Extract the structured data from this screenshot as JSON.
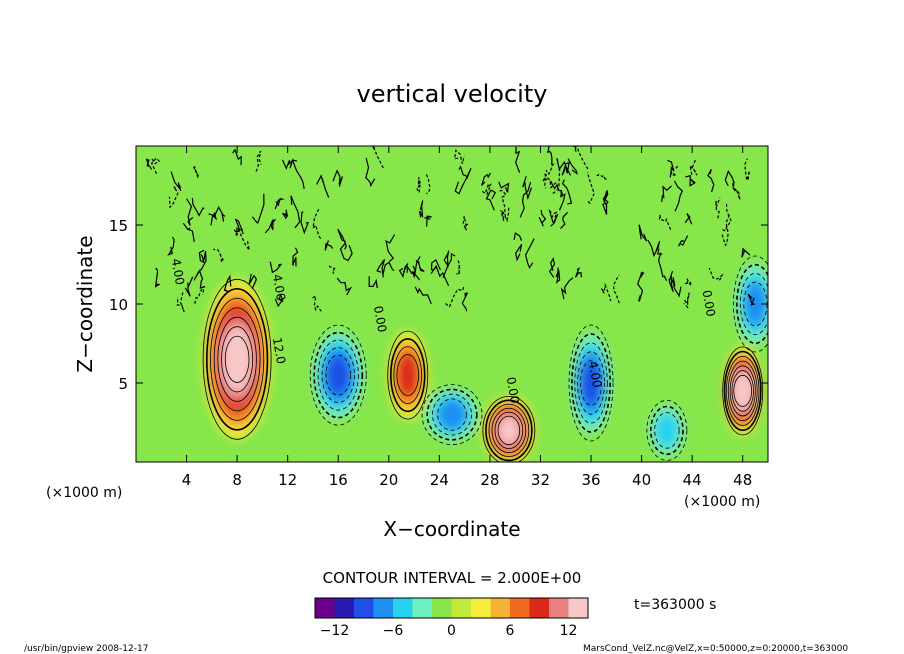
{
  "chart_data": {
    "type": "heatmap",
    "title": "vertical velocity",
    "xlabel": "X−coordinate",
    "ylabel": "Z−coordinate",
    "x_unit_left": "(×1000 m)",
    "x_unit_right": "(×1000 m)",
    "xlim": [
      0,
      50
    ],
    "ylim": [
      0,
      20
    ],
    "x_ticks": [
      4,
      8,
      12,
      16,
      20,
      24,
      28,
      32,
      36,
      40,
      44,
      48
    ],
    "y_ticks": [
      5,
      10,
      15
    ],
    "contour_interval_text": "CONTOUR INTERVAL = 2.000E+00",
    "time_text": "t=363000 s",
    "colorbar": {
      "min": -14,
      "max": 14,
      "ticks": [
        -12,
        -6,
        0,
        6,
        12
      ],
      "colors": [
        "#6a008c",
        "#2a1ab0",
        "#1f4fe6",
        "#1f8ff2",
        "#27d2ee",
        "#6ef0c0",
        "#86e64a",
        "#c2ea3a",
        "#f4ee3a",
        "#f6b232",
        "#f06a22",
        "#dc2a1a",
        "#e88080",
        "#f8c8c8"
      ]
    },
    "features": [
      {
        "x": 8,
        "z": 6.5,
        "value": 14,
        "label": "updraft"
      },
      {
        "x": 29.5,
        "z": 2,
        "value": 12,
        "label": "updraft"
      },
      {
        "x": 21.5,
        "z": 5.5,
        "value": 8,
        "label": "updraft"
      },
      {
        "x": 48,
        "z": 4.5,
        "value": 14,
        "label": "updraft"
      },
      {
        "x": 16,
        "z": 5.5,
        "value": -10,
        "label": "downdraft"
      },
      {
        "x": 25,
        "z": 3,
        "value": -8,
        "label": "downdraft"
      },
      {
        "x": 36,
        "z": 5,
        "value": -10,
        "label": "downdraft"
      },
      {
        "x": 42,
        "z": 2,
        "value": -6,
        "label": "downdraft"
      },
      {
        "x": 49,
        "z": 10,
        "value": -8,
        "label": "downdraft"
      }
    ],
    "contour_labels": [
      "4.00",
      "12.0",
      "4.00",
      "0.00",
      "0.00",
      "4.00",
      "0.00"
    ]
  },
  "footer": {
    "left": "/usr/bin/gpview   2008-12-17",
    "right": "MarsCond_VelZ.nc@VelZ,x=0:50000,z=0:20000,t=363000"
  }
}
